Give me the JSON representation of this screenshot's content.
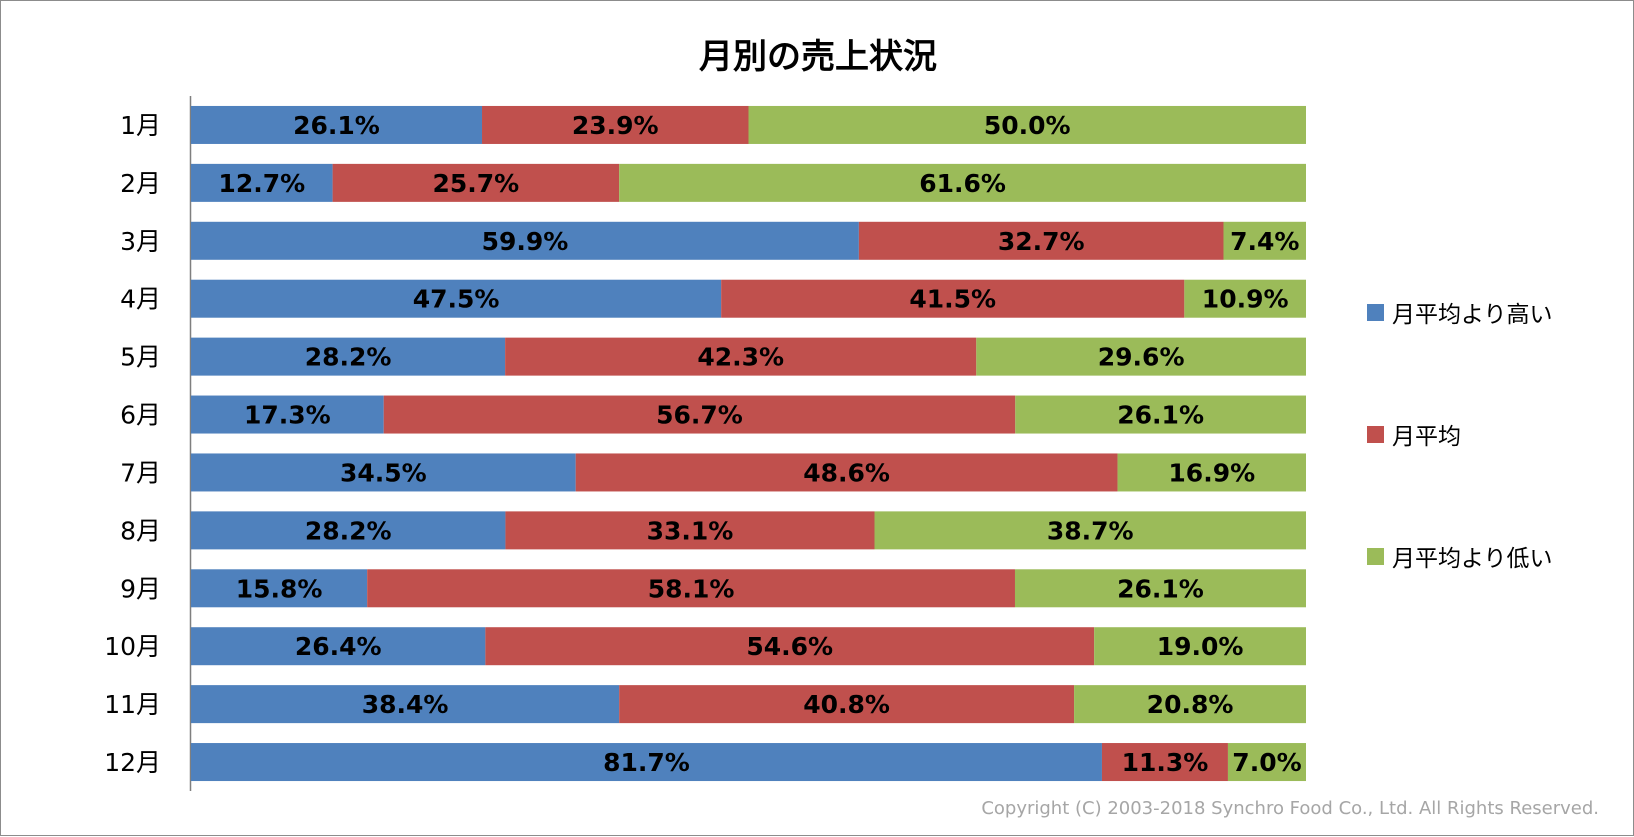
{
  "chart_data": {
    "type": "bar",
    "orientation": "horizontal",
    "stacked": "100%",
    "title": "月別の売上状況",
    "categories": [
      "1月",
      "2月",
      "3月",
      "4月",
      "5月",
      "6月",
      "7月",
      "8月",
      "9月",
      "10月",
      "11月",
      "12月"
    ],
    "series": [
      {
        "name": "月平均より高い",
        "color": "#4f81bd",
        "values": [
          26.1,
          12.7,
          59.9,
          47.5,
          28.2,
          17.3,
          34.5,
          28.2,
          15.8,
          26.4,
          38.4,
          81.7
        ]
      },
      {
        "name": "月平均",
        "color": "#c0504d",
        "values": [
          23.9,
          25.7,
          32.7,
          41.5,
          42.3,
          56.7,
          48.6,
          33.1,
          58.1,
          54.6,
          40.8,
          11.3
        ]
      },
      {
        "name": "月平均より低い",
        "color": "#9bbb59",
        "values": [
          50.0,
          61.6,
          7.4,
          10.9,
          29.6,
          26.1,
          16.9,
          38.7,
          26.1,
          19.0,
          20.8,
          7.0
        ]
      }
    ],
    "value_format": "{v}%",
    "xlim": [
      0,
      100
    ],
    "grid": false,
    "legend_position": "right"
  },
  "copyright": "Copyright (C) 2003-2018  Synchro Food Co., Ltd. All Rights Reserved."
}
